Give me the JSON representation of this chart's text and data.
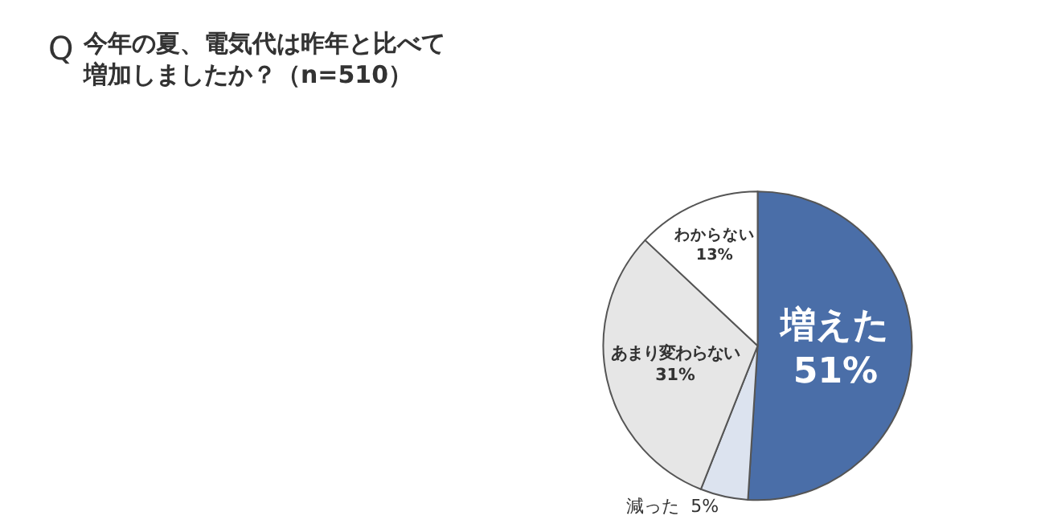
{
  "chart_data": {
    "type": "pie",
    "title": "今年の夏、電気代は昨年と比べて増加しましたか？（n=510）",
    "annotations": [
      "Q"
    ],
    "categories": [
      "増えた",
      "減った",
      "あまり変わらない",
      "わからない"
    ],
    "values": [
      51,
      5,
      31,
      13
    ],
    "value_labels": [
      "51%",
      "5%",
      "31%",
      "13%"
    ],
    "colors": [
      "#4a6ea8",
      "#dce3ef",
      "#e6e6e6",
      "#ffffff"
    ],
    "legend": false
  }
}
